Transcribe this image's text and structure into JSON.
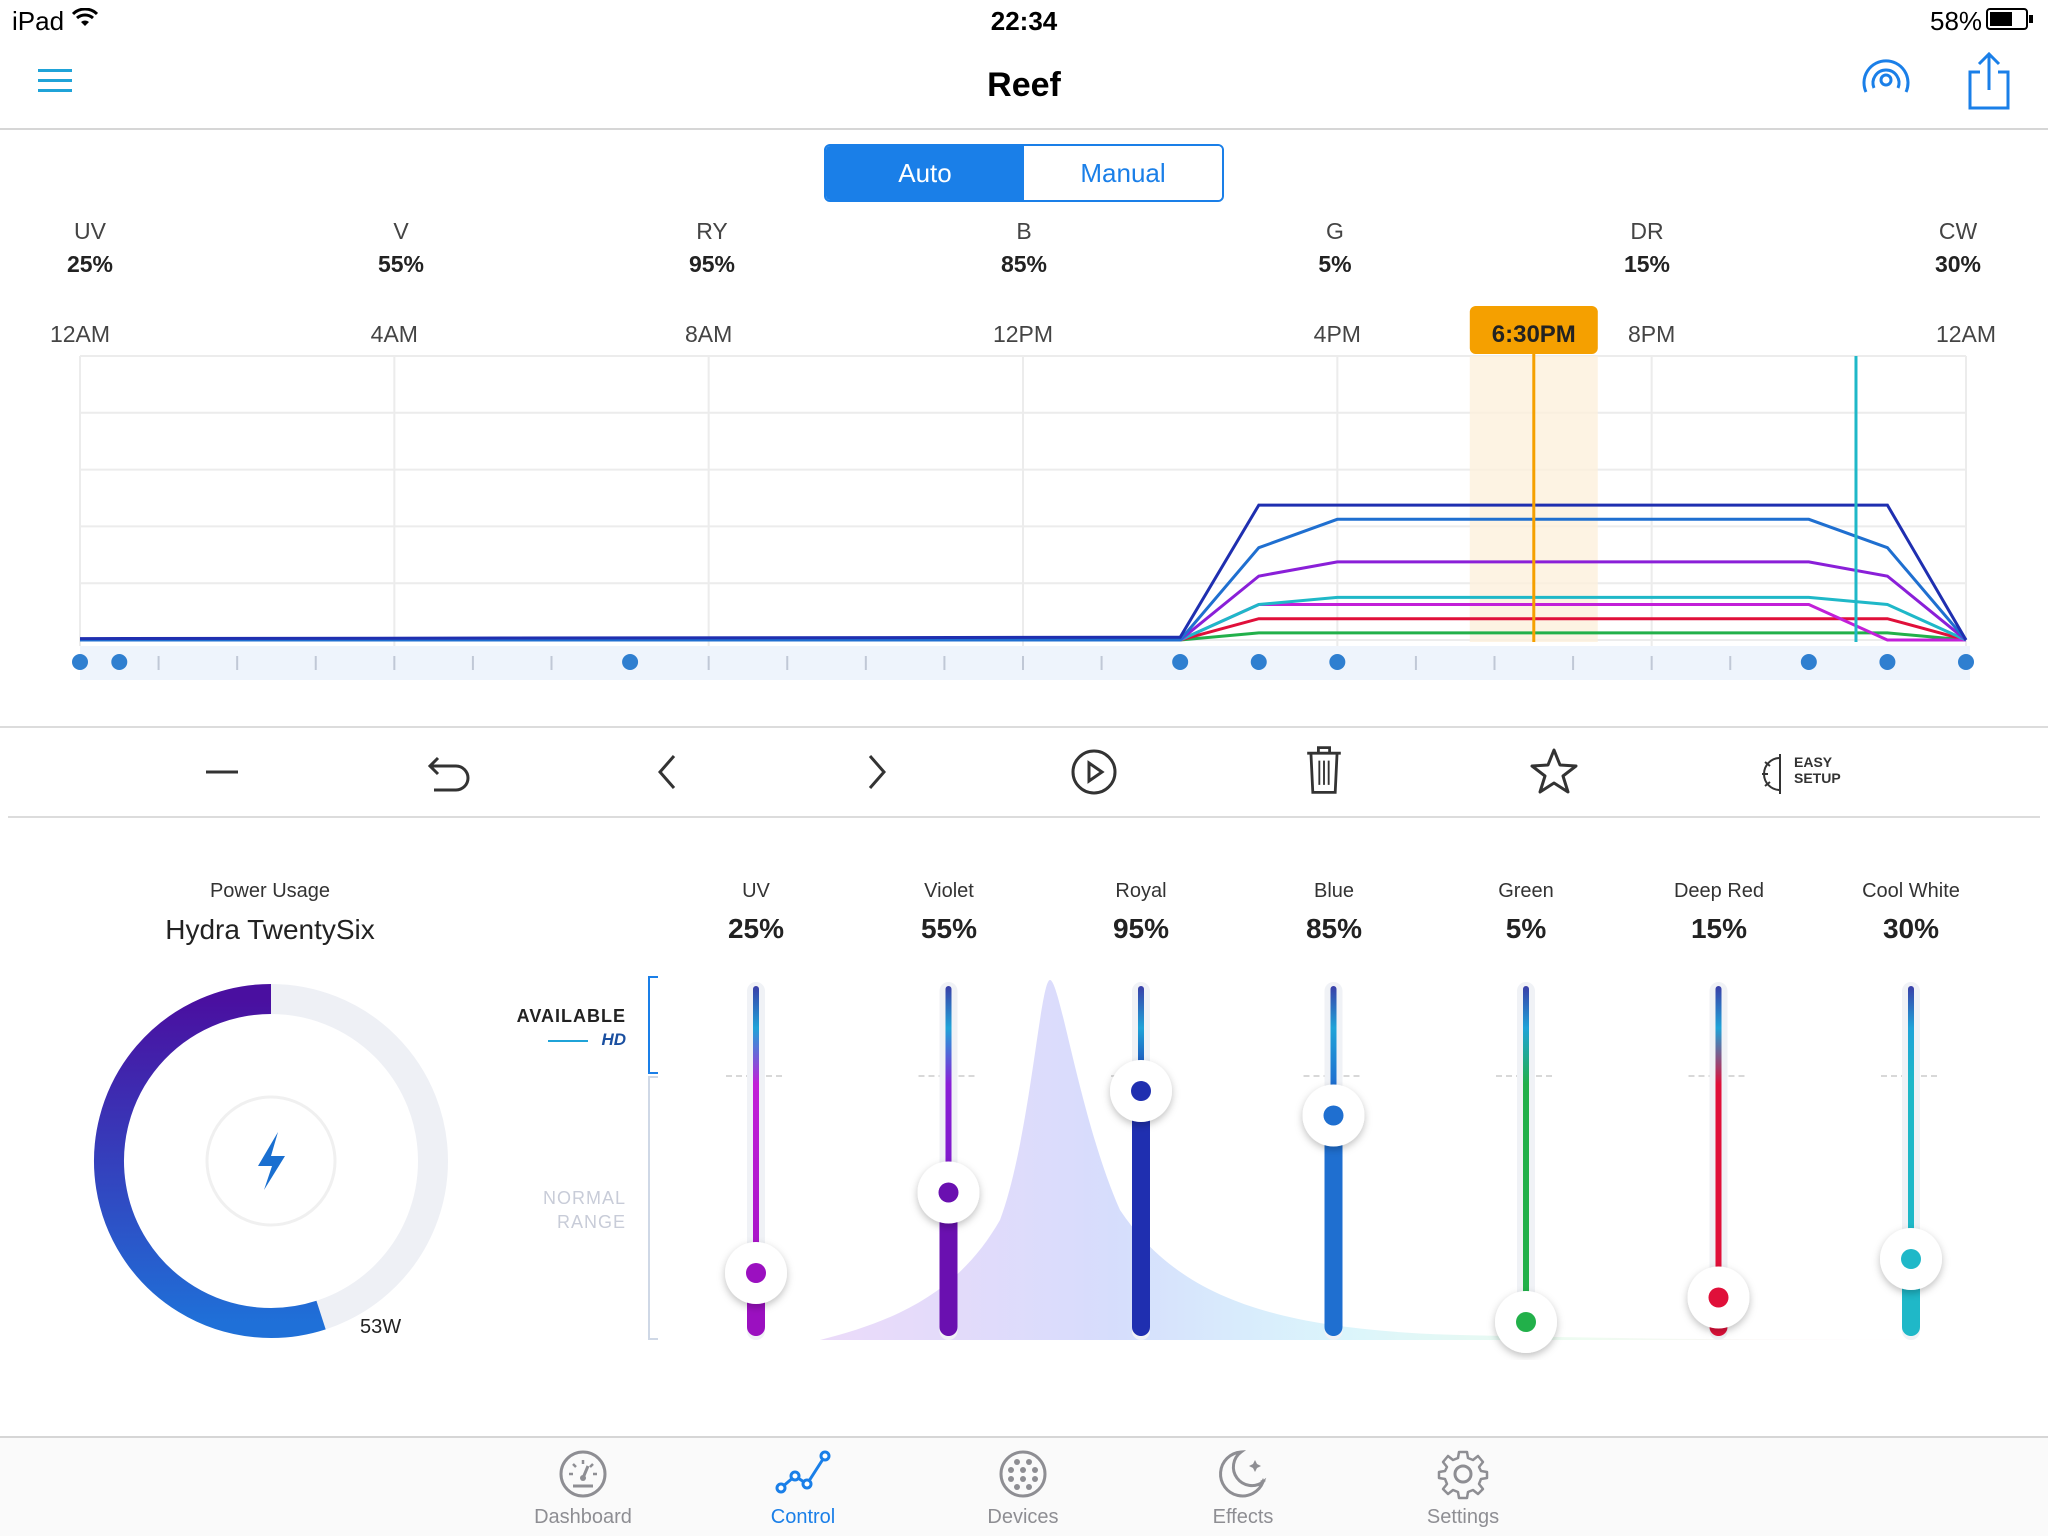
{
  "status": {
    "device": "iPad",
    "time": "22:34",
    "battery": "58%"
  },
  "header": {
    "title": "Reef"
  },
  "mode": {
    "auto_label": "Auto",
    "manual_label": "Manual",
    "selected": "Auto"
  },
  "channels": [
    {
      "code": "UV",
      "value": "25%"
    },
    {
      "code": "V",
      "value": "55%"
    },
    {
      "code": "RY",
      "value": "95%"
    },
    {
      "code": "B",
      "value": "85%"
    },
    {
      "code": "G",
      "value": "5%"
    },
    {
      "code": "DR",
      "value": "15%"
    },
    {
      "code": "CW",
      "value": "30%"
    }
  ],
  "timeline": {
    "labels": [
      "12AM",
      "4AM",
      "8AM",
      "12PM",
      "4PM",
      "8PM",
      "12AM"
    ],
    "current_time": "6:30PM"
  },
  "chart_data": {
    "type": "line",
    "x": [
      "12AM",
      "4AM",
      "8AM",
      "12PM",
      "4PM",
      "8PM",
      "12AM"
    ],
    "series": [
      {
        "name": "UV",
        "color": "#c21fd8",
        "points": [
          [
            0,
            0
          ],
          [
            14,
            0
          ],
          [
            15,
            25
          ],
          [
            22,
            25
          ],
          [
            23,
            0
          ],
          [
            24,
            0
          ]
        ]
      },
      {
        "name": "Violet",
        "color": "#8a1fd8",
        "points": [
          [
            0,
            0
          ],
          [
            14,
            0
          ],
          [
            15,
            45
          ],
          [
            16,
            55
          ],
          [
            22,
            55
          ],
          [
            23,
            45
          ],
          [
            24,
            0
          ]
        ]
      },
      {
        "name": "Royal",
        "color": "#1f2fb0",
        "points": [
          [
            0,
            1
          ],
          [
            14,
            2
          ],
          [
            15,
            95
          ],
          [
            22,
            95
          ],
          [
            23,
            95
          ],
          [
            24,
            0
          ]
        ]
      },
      {
        "name": "Blue",
        "color": "#1f6fd0",
        "points": [
          [
            0,
            0
          ],
          [
            14,
            0
          ],
          [
            15,
            65
          ],
          [
            16,
            85
          ],
          [
            22,
            85
          ],
          [
            23,
            65
          ],
          [
            24,
            0
          ]
        ]
      },
      {
        "name": "Green",
        "color": "#22b04a",
        "points": [
          [
            0,
            0
          ],
          [
            14,
            0
          ],
          [
            15,
            5
          ],
          [
            22,
            5
          ],
          [
            23,
            5
          ],
          [
            24,
            0
          ]
        ]
      },
      {
        "name": "Deep Red",
        "color": "#e0103a",
        "points": [
          [
            0,
            0
          ],
          [
            14,
            0
          ],
          [
            15,
            15
          ],
          [
            22,
            15
          ],
          [
            23,
            15
          ],
          [
            24,
            0
          ]
        ]
      },
      {
        "name": "Cool White",
        "color": "#1fb8c8",
        "points": [
          [
            0,
            0
          ],
          [
            14,
            0
          ],
          [
            15,
            25
          ],
          [
            16,
            30
          ],
          [
            22,
            30
          ],
          [
            23,
            25
          ],
          [
            24,
            0
          ]
        ]
      }
    ],
    "xlim": [
      0,
      24
    ],
    "ylim": [
      0,
      200
    ],
    "current_hour": 18.5,
    "marker_hour": 22.6,
    "keyframes": [
      0,
      0.5,
      7,
      14,
      15,
      16,
      22,
      23,
      24
    ]
  },
  "toolbar": {
    "easy_setup_line1": "EASY",
    "easy_setup_line2": "SETUP"
  },
  "power": {
    "label": "Power Usage",
    "device_name": "Hydra TwentySix",
    "watts": "53W",
    "fraction": 0.55
  },
  "range": {
    "available": "AVAILABLE",
    "hd": "HD",
    "normal": "NORMAL",
    "range": "RANGE"
  },
  "sliders": [
    {
      "name": "UV",
      "value": "25%",
      "level": 0.18,
      "color": "#c21fd8",
      "dark": "#9b10c0"
    },
    {
      "name": "Violet",
      "value": "55%",
      "level": 0.41,
      "color": "#8a1fd8",
      "dark": "#6a10b0"
    },
    {
      "name": "Royal",
      "value": "95%",
      "level": 0.7,
      "color": "#1f2fb0",
      "dark": "#1f2fb0"
    },
    {
      "name": "Blue",
      "value": "85%",
      "level": 0.63,
      "color": "#1f6fd0",
      "dark": "#1f6fd0"
    },
    {
      "name": "Green",
      "value": "5%",
      "level": 0.04,
      "color": "#22b04a",
      "dark": "#22b04a"
    },
    {
      "name": "Deep Red",
      "value": "15%",
      "level": 0.11,
      "color": "#e0103a",
      "dark": "#e0103a"
    },
    {
      "name": "Cool White",
      "value": "30%",
      "level": 0.22,
      "color": "#1fb8c8",
      "dark": "#1fb8c8"
    }
  ],
  "tabs": [
    {
      "label": "Dashboard",
      "icon": "dashboard-icon"
    },
    {
      "label": "Control",
      "icon": "control-icon"
    },
    {
      "label": "Devices",
      "icon": "devices-icon"
    },
    {
      "label": "Effects",
      "icon": "effects-icon"
    },
    {
      "label": "Settings",
      "icon": "settings-icon"
    }
  ],
  "active_tab": "Control"
}
